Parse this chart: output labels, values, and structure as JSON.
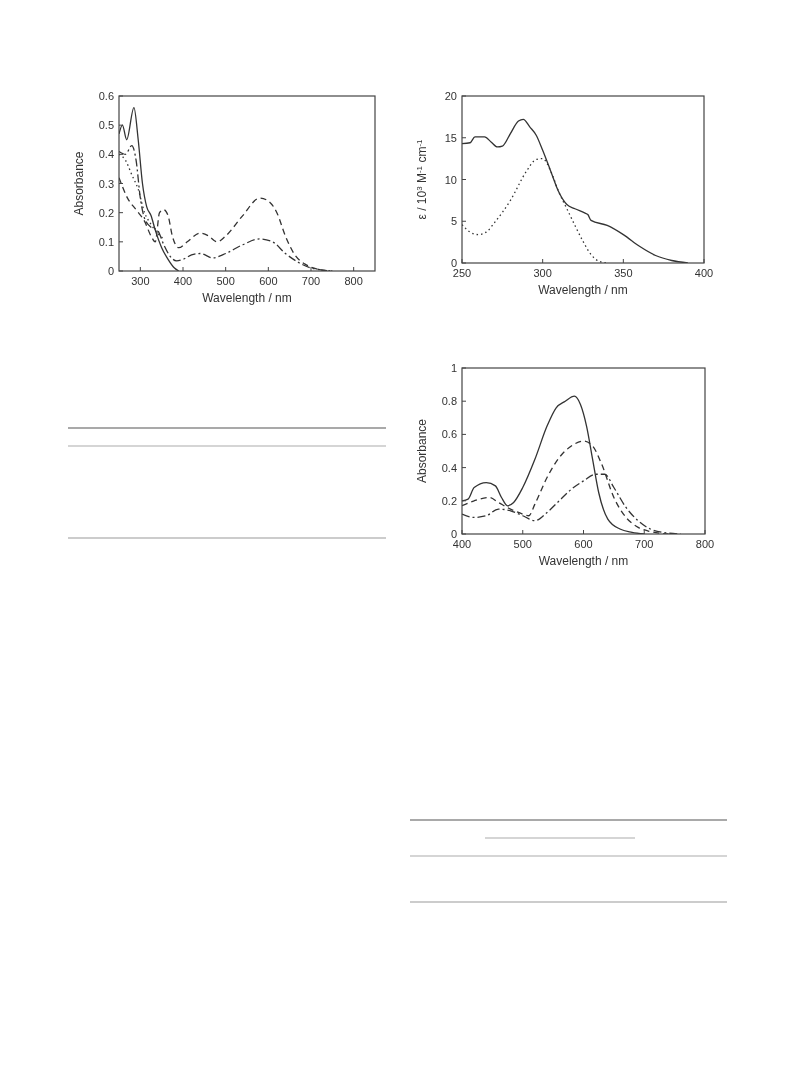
{
  "chart_data": [
    {
      "type": "line",
      "xlabel": "Wavelength / nm",
      "ylabel": "Absorbance",
      "xlim": [
        250,
        850
      ],
      "ylim": [
        0,
        0.6
      ],
      "xticks": [
        300,
        400,
        500,
        600,
        700,
        800
      ],
      "yticks": [
        0,
        0.1,
        0.2,
        0.3,
        0.4,
        0.5,
        0.6
      ],
      "grid": false,
      "marker": "none",
      "series": [
        {
          "color": "#333333",
          "line_style": "solid",
          "x": [
            250,
            258,
            268,
            285,
            295,
            305,
            315,
            325,
            335,
            350,
            365,
            380,
            390
          ],
          "values": [
            0.47,
            0.5,
            0.45,
            0.56,
            0.45,
            0.3,
            0.22,
            0.19,
            0.14,
            0.08,
            0.04,
            0.01,
            0
          ]
        },
        {
          "color": "#333333",
          "line_style": "dashdot",
          "x": [
            250,
            265,
            280,
            290,
            300,
            310,
            325,
            340,
            355,
            370,
            385,
            400,
            420,
            440,
            470,
            500,
            540,
            580,
            610,
            640,
            670,
            700,
            720,
            750
          ],
          "values": [
            0.41,
            0.4,
            0.43,
            0.38,
            0.25,
            0.18,
            0.15,
            0.14,
            0.09,
            0.05,
            0.035,
            0.04,
            0.055,
            0.06,
            0.045,
            0.06,
            0.09,
            0.11,
            0.1,
            0.06,
            0.03,
            0.01,
            0.005,
            0
          ]
        },
        {
          "color": "#333333",
          "line_style": "dashed",
          "x": [
            250,
            270,
            290,
            310,
            325,
            335,
            345,
            355,
            365,
            375,
            390,
            410,
            440,
            460,
            480,
            500,
            540,
            580,
            600,
            620,
            640,
            660,
            690,
            720,
            750
          ],
          "values": [
            0.32,
            0.25,
            0.21,
            0.17,
            0.12,
            0.1,
            0.2,
            0.21,
            0.19,
            0.12,
            0.08,
            0.1,
            0.13,
            0.12,
            0.1,
            0.12,
            0.19,
            0.25,
            0.24,
            0.2,
            0.12,
            0.06,
            0.02,
            0.005,
            0
          ]
        },
        {
          "color": "#333333",
          "line_style": "dotted",
          "x": [
            250,
            265,
            280,
            295,
            310,
            325,
            340,
            355
          ],
          "values": [
            0.4,
            0.38,
            0.33,
            0.28,
            0.2,
            0.16,
            0.13,
            0.11
          ]
        }
      ]
    },
    {
      "type": "line",
      "xlabel": "Wavelength / nm",
      "ylabel": "ε / 10$^{3}$ M$^{-1}$ cm$^{-1}$",
      "xlim": [
        250,
        400
      ],
      "ylim": [
        0,
        20
      ],
      "xticks": [
        250,
        300,
        350,
        400
      ],
      "yticks": [
        0,
        5,
        10,
        15,
        20
      ],
      "grid": false,
      "marker": "none",
      "series": [
        {
          "color": "#333333",
          "line_style": "solid",
          "x": [
            250,
            255,
            258,
            264,
            268,
            272,
            275,
            280,
            285,
            288,
            292,
            296,
            300,
            305,
            310,
            315,
            320,
            326,
            328,
            330,
            340,
            350,
            360,
            370,
            380,
            390
          ],
          "values": [
            14.3,
            14.4,
            15.1,
            15.1,
            14.5,
            13.9,
            14.0,
            15.5,
            17.0,
            17.2,
            16.3,
            15.3,
            13.5,
            11,
            8.5,
            7,
            6.5,
            6,
            5.8,
            5.1,
            4.5,
            3.4,
            2,
            0.9,
            0.3,
            0
          ]
        },
        {
          "color": "#333333",
          "line_style": "dotted",
          "x": [
            250,
            255,
            260,
            265,
            270,
            280,
            290,
            296,
            300,
            305,
            310,
            315,
            320,
            325,
            330,
            335,
            340
          ],
          "values": [
            4.6,
            3.7,
            3.4,
            3.7,
            4.8,
            7.5,
            11,
            12.4,
            12.5,
            11,
            8.5,
            6.5,
            4.5,
            2.6,
            1,
            0.2,
            0
          ]
        }
      ]
    },
    {
      "type": "line",
      "xlabel": "Wavelength / nm",
      "ylabel": "Absorbance",
      "xlim": [
        400,
        800
      ],
      "ylim": [
        0,
        1
      ],
      "xticks": [
        400,
        500,
        600,
        700,
        800
      ],
      "yticks": [
        0,
        0.2,
        0.4,
        0.6,
        0.8,
        1
      ],
      "grid": false,
      "marker": "none",
      "series": [
        {
          "color": "#333333",
          "line_style": "solid",
          "x": [
            400,
            410,
            420,
            440,
            455,
            465,
            475,
            485,
            500,
            520,
            540,
            555,
            570,
            585,
            595,
            605,
            615,
            625,
            640,
            660,
            680,
            700
          ],
          "values": [
            0.2,
            0.21,
            0.28,
            0.31,
            0.29,
            0.22,
            0.17,
            0.19,
            0.28,
            0.45,
            0.65,
            0.76,
            0.8,
            0.83,
            0.78,
            0.65,
            0.45,
            0.25,
            0.09,
            0.03,
            0.01,
            0
          ]
        },
        {
          "color": "#333333",
          "line_style": "dashed",
          "x": [
            400,
            420,
            445,
            460,
            480,
            500,
            510,
            520,
            540,
            560,
            580,
            600,
            615,
            630,
            650,
            670,
            690,
            710,
            740
          ],
          "values": [
            0.17,
            0.2,
            0.22,
            0.19,
            0.15,
            0.12,
            0.11,
            0.18,
            0.34,
            0.46,
            0.53,
            0.56,
            0.53,
            0.42,
            0.22,
            0.1,
            0.04,
            0.015,
            0
          ]
        },
        {
          "color": "#333333",
          "line_style": "dashdot",
          "x": [
            400,
            420,
            440,
            460,
            480,
            500,
            520,
            540,
            560,
            580,
            600,
            620,
            635,
            650,
            670,
            690,
            710,
            740,
            760
          ],
          "values": [
            0.12,
            0.1,
            0.11,
            0.15,
            0.14,
            0.11,
            0.08,
            0.13,
            0.2,
            0.27,
            0.32,
            0.36,
            0.36,
            0.28,
            0.16,
            0.08,
            0.03,
            0.005,
            0
          ]
        }
      ]
    }
  ]
}
